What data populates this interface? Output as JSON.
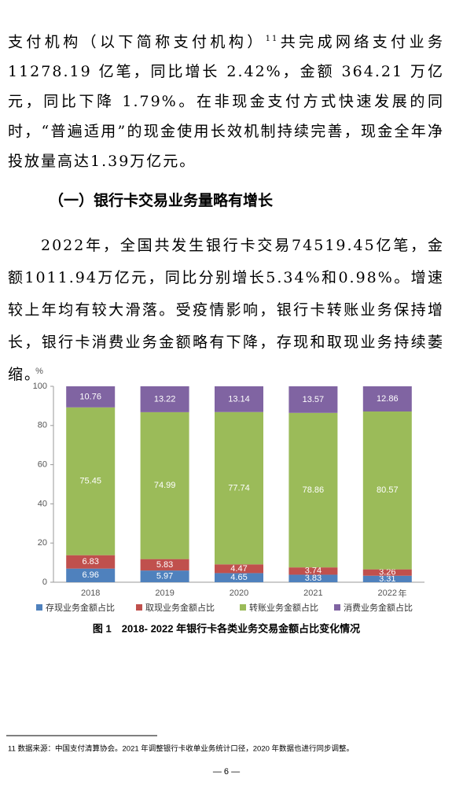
{
  "paragraph_1": {
    "before": "支付机构（以下简称支付机构）",
    "footnote_ref": "11",
    "after": "共完成网络支付业务11278.19 亿笔，同比增长 2.42%，金额 364.21 万亿元，同比下降 1.79%。在非现金支付方式快速发展的同时，“普遍适用”的现金使用长效机制持续完善，现金全年净投放量高达1.39万亿元。"
  },
  "heading": "（一）银行卡交易业务量略有增长",
  "paragraph_2": "2022年，全国共发生银行卡交易74519.45亿笔，金额1011.94万亿元，同比分别增长5.34%和0.98%。增速较上年均有较大滑落。受疫情影响，银行卡转账业务保持增长，银行卡消费业务金额略有下降，存现和取现业务持续萎缩。",
  "chart_data": {
    "type": "stacked_bar",
    "y_unit": "%",
    "x_unit": "年",
    "categories": [
      "2018",
      "2019",
      "2020",
      "2021",
      "2022"
    ],
    "series": [
      {
        "name": "存现业务金额占比",
        "color": "#4f81bd",
        "values": [
          6.96,
          5.97,
          4.65,
          3.83,
          3.31
        ]
      },
      {
        "name": "取现业务金额占比",
        "color": "#c0504d",
        "values": [
          6.83,
          5.83,
          4.47,
          3.74,
          3.26
        ]
      },
      {
        "name": "转账业务金额占比",
        "color": "#9bbb59",
        "values": [
          75.45,
          74.99,
          77.74,
          78.86,
          80.57
        ]
      },
      {
        "name": "消费业务金额占比",
        "color": "#8064a2",
        "values": [
          10.76,
          13.22,
          13.14,
          13.57,
          12.86
        ]
      }
    ],
    "ylim": [
      0,
      100
    ],
    "yticks": [
      0,
      20,
      40,
      60,
      80,
      100
    ],
    "grid": false
  },
  "caption": "图 1　2018- 2022 年银行卡各类业务交易金额占比变化情况",
  "footnote": "11 数据来源：中国支付清算协会。2021 年调整银行卡收单业务统计口径，2020 年数据也进行同步调整。",
  "page_number": "— 6 —"
}
